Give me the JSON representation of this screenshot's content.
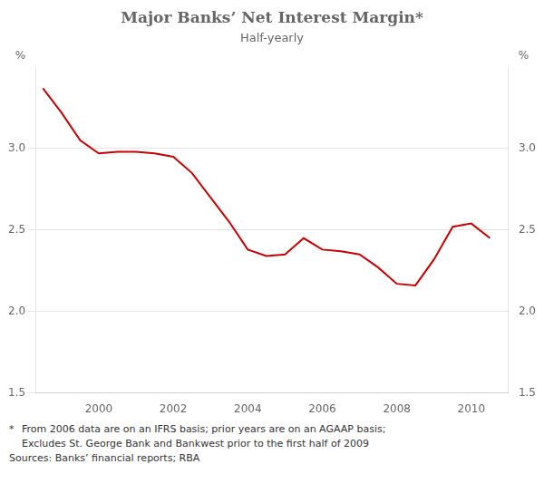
{
  "chart_data": {
    "type": "line",
    "title": "Major Banks’ Net Interest Margin*",
    "subtitle": "Half-yearly",
    "ylabel": "%",
    "y2label": "%",
    "x": [
      1998.5,
      1999.0,
      1999.5,
      2000.0,
      2000.5,
      2001.0,
      2001.5,
      2002.0,
      2002.5,
      2003.0,
      2003.5,
      2004.0,
      2004.5,
      2005.0,
      2005.5,
      2006.0,
      2006.5,
      2007.0,
      2007.5,
      2008.0,
      2008.5,
      2009.0,
      2009.5,
      2010.0,
      2010.5
    ],
    "values": [
      3.37,
      3.22,
      3.05,
      2.97,
      2.98,
      2.98,
      2.97,
      2.95,
      2.85,
      2.7,
      2.55,
      2.38,
      2.34,
      2.35,
      2.45,
      2.38,
      2.37,
      2.35,
      2.27,
      2.17,
      2.16,
      2.32,
      2.52,
      2.54,
      2.45
    ],
    "color": "#cc0000",
    "xlim": [
      1998.3,
      2011.0
    ],
    "xticks": [
      2000,
      2002,
      2004,
      2006,
      2008,
      2010
    ],
    "ylim": [
      1.5,
      3.5
    ],
    "yticks": [
      1.5,
      {
        "value": 2.0,
        "label": "2.0"
      },
      2.5,
      {
        "value": 3.0,
        "label": "3.0"
      }
    ],
    "y2lim": [
      1.5,
      3.5
    ],
    "y2ticks": [
      1.5,
      {
        "value": 2.0,
        "label": "2.0"
      },
      2.5,
      {
        "value": 3.0,
        "label": "3.0"
      }
    ],
    "grid": "y",
    "footnotes": [
      "*",
      "From 2006 data are on an IFRS basis; prior years are on an AGAAP basis;",
      "Excludes St. George Bank and Bankwest prior to the first half of 2009",
      "Sources: Banks’ financial reports; RBA"
    ]
  }
}
